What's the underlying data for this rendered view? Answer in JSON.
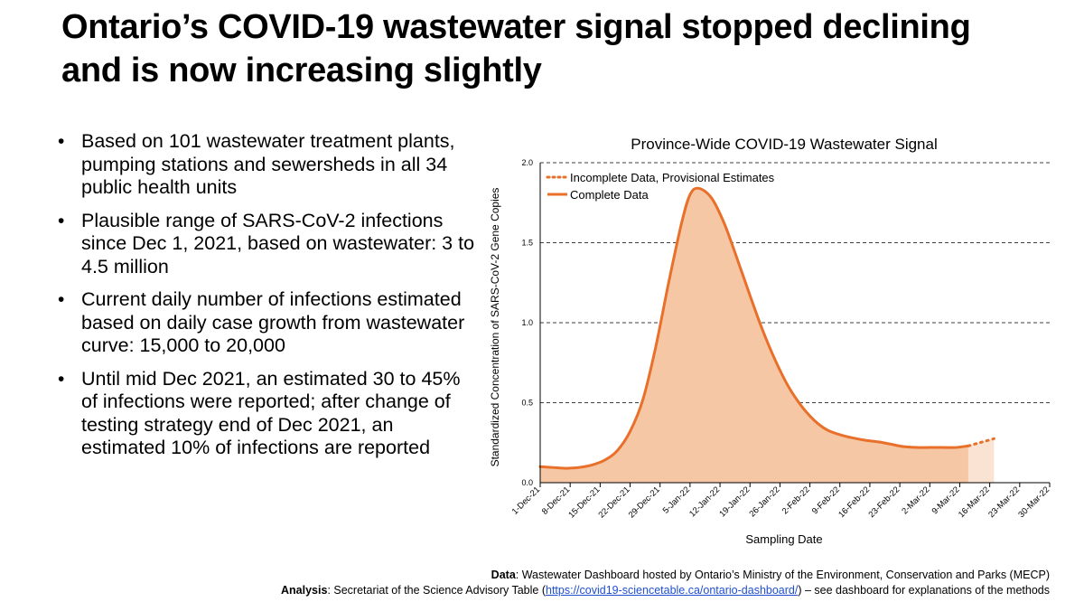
{
  "slide": {
    "title_line1": "Ontario’s COVID-19 wastewater signal stopped declining",
    "title_line2": "and is now increasing slightly",
    "bullets": [
      "Based on 101 wastewater treatment plants, pumping stations and sewersheds in all 34 public health units",
      "Plausible range of SARS-CoV-2 infections since Dec 1, 2021, based on wastewater: 3 to 4.5 million",
      "Current daily number of infections estimated based on daily case growth from wastewater curve: 15,000 to 20,000",
      "Until mid Dec 2021, an estimated 30 to 45% of infections were reported; after change of testing strategy end of Dec 2021, an estimated 10% of infections are reported"
    ],
    "bullet_glyph": "•"
  },
  "footer": {
    "data_label": "Data",
    "data_text": ": Wastewater Dashboard hosted by Ontario’s Ministry of the Environment, Conservation and Parks (MECP)",
    "analysis_label": "Analysis",
    "analysis_text_pre": ": Secretariat of the Science Advisory Table (",
    "analysis_link": "https://covid19-sciencetable.ca/ontario-dashboard/",
    "analysis_text_post": ") – see dashboard for explanations of the methods"
  },
  "colors": {
    "line": "#e8702a",
    "fill": "#f6c7a5",
    "fill_provisional": "#fbe3d3",
    "grid": "#000000"
  },
  "chart_data": {
    "type": "area",
    "title": "Province-Wide COVID-19 Wastewater Signal",
    "xlabel": "Sampling Date",
    "ylabel": "Standardized Concentration of SARS-CoV-2 Gene Copies",
    "ylim": [
      0,
      2.0
    ],
    "yticks": [
      0.0,
      0.5,
      1.0,
      1.5,
      2.0
    ],
    "ytick_labels": [
      "0.0",
      "0.5",
      "1.0",
      "1.5",
      "2.0"
    ],
    "xlim_days": [
      0,
      119
    ],
    "xticks_days": [
      0,
      7,
      14,
      21,
      28,
      35,
      42,
      49,
      56,
      63,
      70,
      77,
      84,
      91,
      98,
      105,
      112,
      119
    ],
    "xtick_labels": [
      "1-Dec-21",
      "8-Dec-21",
      "15-Dec-21",
      "22-Dec-21",
      "29-Dec-21",
      "5-Jan-22",
      "12-Jan-22",
      "19-Jan-22",
      "26-Jan-22",
      "2-Feb-22",
      "9-Feb-22",
      "16-Feb-22",
      "23-Feb-22",
      "2-Mar-22",
      "9-Mar-22",
      "16-Mar-22",
      "23-Mar-22",
      "30-Mar-22"
    ],
    "grid": "horizontal dashed",
    "legend_position": "top-left",
    "series": [
      {
        "name": "Complete Data",
        "style": "solid",
        "x_days": [
          0,
          3,
          6,
          9,
          12,
          15,
          18,
          21,
          24,
          27,
          30,
          33,
          35,
          37,
          40,
          43,
          46,
          49,
          52,
          55,
          58,
          61,
          64,
          67,
          70,
          73,
          76,
          79,
          82,
          85,
          88,
          91,
          94,
          97,
          100
        ],
        "values": [
          0.1,
          0.095,
          0.09,
          0.095,
          0.11,
          0.14,
          0.2,
          0.32,
          0.52,
          0.85,
          1.25,
          1.62,
          1.8,
          1.84,
          1.78,
          1.62,
          1.4,
          1.17,
          0.95,
          0.76,
          0.6,
          0.48,
          0.39,
          0.33,
          0.3,
          0.28,
          0.265,
          0.255,
          0.24,
          0.225,
          0.22,
          0.22,
          0.22,
          0.22,
          0.23
        ]
      },
      {
        "name": "Incomplete Data, Provisional Estimates",
        "style": "dotted",
        "x_days": [
          100,
          102,
          104,
          106
        ],
        "values": [
          0.23,
          0.245,
          0.26,
          0.275
        ]
      }
    ]
  }
}
